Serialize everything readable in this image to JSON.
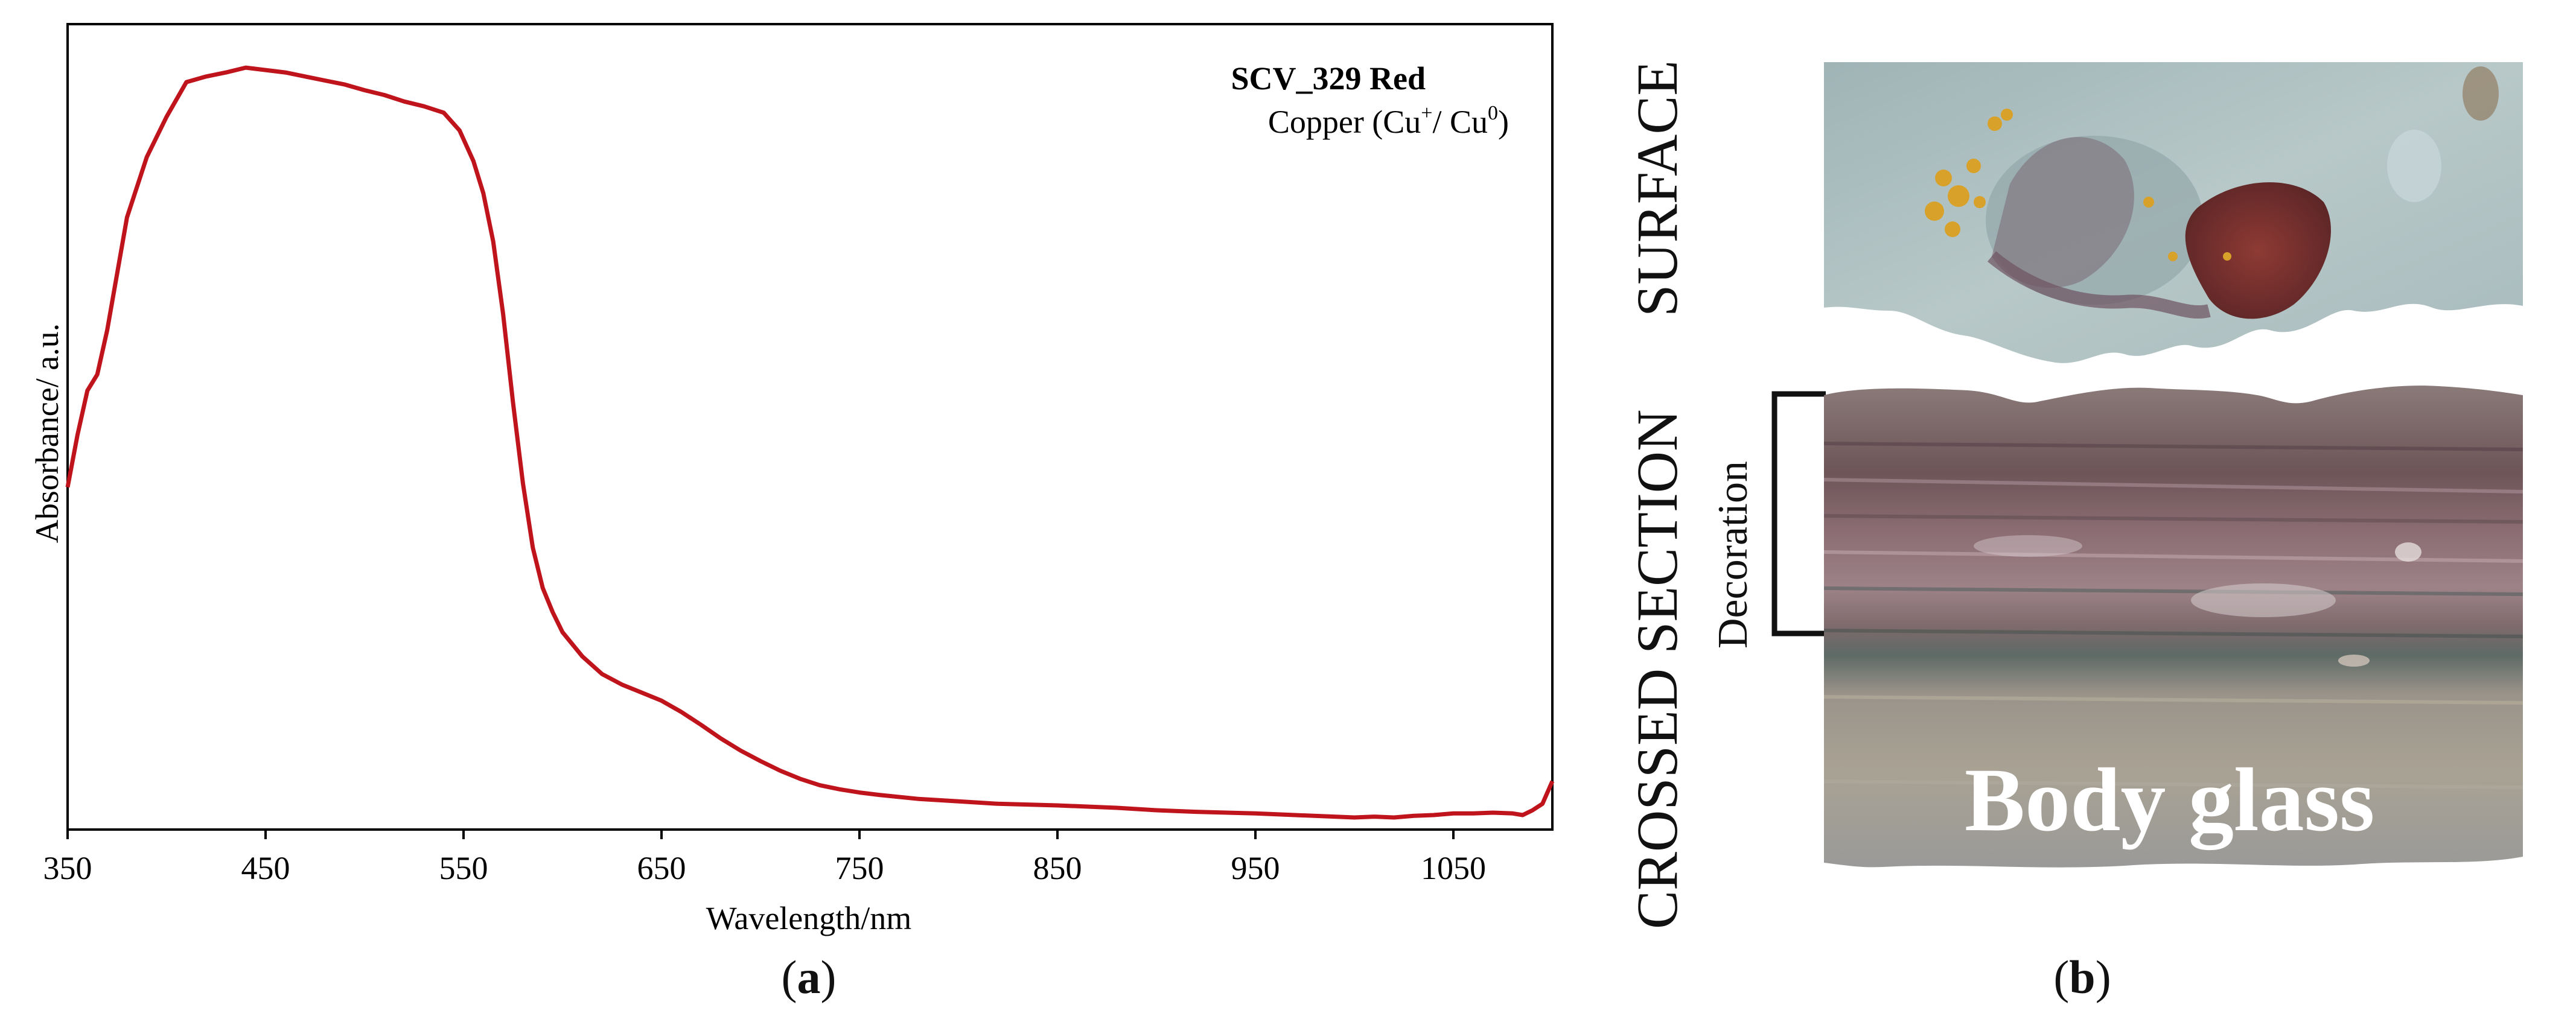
{
  "panel_a": {
    "label": "a"
  },
  "panel_b": {
    "label": "b",
    "surface_label": "SURFACE",
    "section_label": "CROSSED SECTION",
    "decoration_label": "Decoration",
    "body_glass_label": "Body glass"
  },
  "colors": {
    "line": "#c0141c",
    "axis": "#000000"
  },
  "chart_data": {
    "type": "line",
    "title": "",
    "annotation_sample": "SCV_329 Red",
    "annotation_chromophore_prefix": "Copper (Cu",
    "annotation_sup1": "+",
    "annotation_mid": "/ Cu",
    "annotation_sup2": "0",
    "annotation_suffix": ")",
    "xlabel": "Wavelength/nm",
    "ylabel": "Absorbance/ a.u.",
    "xlim": [
      350,
      1100
    ],
    "ylim": [
      0,
      1.0
    ],
    "xticks": [
      350,
      450,
      550,
      650,
      750,
      850,
      950,
      1050
    ],
    "y_tick_labels": false,
    "series": [
      {
        "name": "SCV_329 Red",
        "x": [
          350,
          355,
          360,
          365,
          370,
          380,
          390,
          400,
          410,
          420,
          430,
          440,
          450,
          460,
          470,
          480,
          490,
          500,
          510,
          520,
          530,
          540,
          548,
          555,
          560,
          565,
          570,
          575,
          580,
          585,
          590,
          595,
          600,
          610,
          620,
          630,
          640,
          650,
          660,
          670,
          680,
          690,
          700,
          710,
          720,
          730,
          740,
          750,
          760,
          780,
          800,
          820,
          850,
          880,
          900,
          920,
          950,
          970,
          990,
          1000,
          1010,
          1020,
          1030,
          1040,
          1050,
          1060,
          1070,
          1080,
          1085,
          1090,
          1095,
          1100
        ],
        "y": [
          0.425,
          0.49,
          0.545,
          0.565,
          0.62,
          0.76,
          0.835,
          0.885,
          0.928,
          0.935,
          0.94,
          0.946,
          0.943,
          0.94,
          0.935,
          0.93,
          0.925,
          0.918,
          0.912,
          0.904,
          0.898,
          0.89,
          0.868,
          0.83,
          0.79,
          0.73,
          0.64,
          0.53,
          0.43,
          0.35,
          0.3,
          0.27,
          0.245,
          0.215,
          0.193,
          0.18,
          0.17,
          0.16,
          0.146,
          0.13,
          0.113,
          0.098,
          0.085,
          0.073,
          0.063,
          0.055,
          0.05,
          0.046,
          0.043,
          0.038,
          0.035,
          0.032,
          0.03,
          0.027,
          0.024,
          0.022,
          0.02,
          0.018,
          0.016,
          0.015,
          0.016,
          0.015,
          0.017,
          0.018,
          0.02,
          0.02,
          0.021,
          0.02,
          0.018,
          0.024,
          0.032,
          0.06
        ]
      }
    ]
  }
}
